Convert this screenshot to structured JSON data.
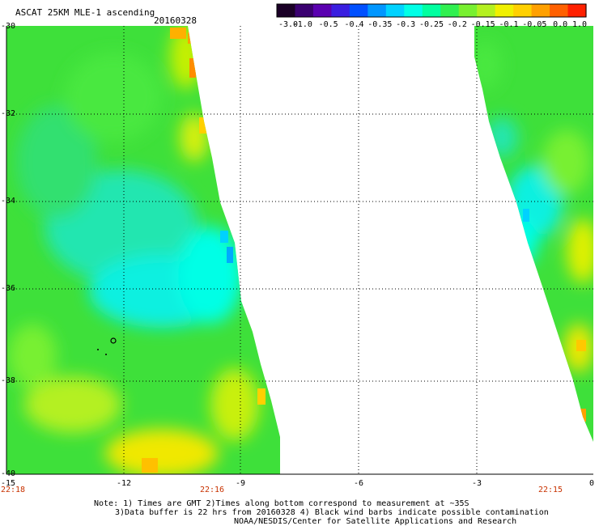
{
  "title": "ASCAT 25KM MLE-1 ascending",
  "date": "20160328",
  "colorbar": {
    "ticks": [
      "-3.0",
      "-1.0",
      "-0.5",
      "-0.4",
      "-0.35",
      "-0.3",
      "-0.25",
      "-0.2",
      "-0.15",
      "-0.1",
      "-0.05",
      "0.0",
      "1.0"
    ],
    "colors": [
      "#1a0026",
      "#3a0070",
      "#5a00b0",
      "#3a1ee0",
      "#0050ff",
      "#0096ff",
      "#00d2ff",
      "#00ffe6",
      "#00ffa0",
      "#30f050",
      "#78f030",
      "#b4f020",
      "#f0f000",
      "#ffd000",
      "#ffa000",
      "#ff6000",
      "#ff2000"
    ]
  },
  "lat_labels": [
    "-30",
    "-32",
    "-34",
    "-36",
    "-38",
    "-40"
  ],
  "lon_labels": [
    "-15",
    "-12",
    "-9",
    "-6",
    "-3",
    "0"
  ],
  "time_labels": [
    "22:18",
    "22:16",
    "22:15"
  ],
  "notes": [
    "Note: 1) Times are GMT 2)Times along bottom correspond to measurement at ~35S",
    "3)Data buffer is 22 hrs from 20160328 4) Black wind barbs indicate possible contamination",
    "NOAA/NESDIS/Center for Satellite Applications and Research"
  ],
  "map_colors": {
    "swath_green": "#3ee03a",
    "swath_cyan": "#14f0e6",
    "swath_yellow": "#f0f000",
    "swath_orange": "#ffa000",
    "grid": "#000000"
  }
}
